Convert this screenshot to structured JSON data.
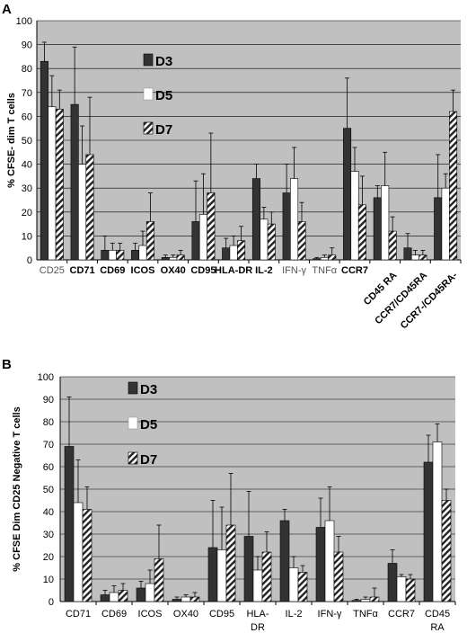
{
  "colors": {
    "plot_bg": "#c0c0c0",
    "d3": "#333333",
    "d5": "#ffffff",
    "d7_stripe": "#222222",
    "gridline": "#808080"
  },
  "chart_data": [
    {
      "panel": "A",
      "type": "bar",
      "ylabel": "% CFSE- dim T cells",
      "ylim": [
        0,
        100
      ],
      "yticks": [
        0,
        10,
        20,
        30,
        40,
        50,
        60,
        70,
        80,
        90,
        100
      ],
      "grid": true,
      "legend_placement": "upper-middle",
      "categories": [
        "CD25",
        "CD71",
        "CD69",
        "ICOS",
        "OX40",
        "CD95",
        "HLA-DR",
        "IL-2",
        "IFN-γ",
        "TNFα",
        "CCR7",
        "CD45 RA",
        "CCR7/CD45RA",
        "CCR7-/CD45RA-"
      ],
      "light_categories": [
        "CD25",
        "IFN-γ",
        "TNFα"
      ],
      "series": [
        {
          "name": "D3",
          "values": [
            83,
            65,
            4,
            4,
            1,
            16,
            5,
            34,
            28,
            0.5,
            55,
            26,
            5,
            26
          ],
          "errors": [
            8,
            24,
            6,
            3,
            1,
            17,
            4,
            6,
            12,
            0.5,
            21,
            5,
            6,
            18
          ]
        },
        {
          "name": "D5",
          "values": [
            64,
            40,
            4,
            6,
            1,
            19,
            6,
            17,
            34,
            1,
            37,
            31,
            2,
            30
          ],
          "errors": [
            13,
            16,
            3,
            6,
            1,
            17,
            4,
            5,
            13,
            1,
            10,
            14,
            2,
            6
          ]
        },
        {
          "name": "D7",
          "values": [
            63,
            44,
            4,
            16,
            2,
            28,
            8,
            15,
            16,
            2,
            23,
            12,
            2,
            62
          ],
          "errors": [
            8,
            24,
            3,
            12,
            2,
            25,
            6,
            5,
            8,
            3,
            12,
            6,
            2,
            9
          ]
        }
      ]
    },
    {
      "panel": "B",
      "type": "bar",
      "ylabel": "% CFSE Dim CD25 Negative T cells",
      "ylim": [
        0,
        100
      ],
      "yticks": [
        0,
        10,
        20,
        30,
        40,
        50,
        60,
        70,
        80,
        90,
        100
      ],
      "grid": true,
      "legend_placement": "upper-left",
      "categories": [
        "CD71",
        "CD69",
        "ICOS",
        "OX40",
        "CD95",
        "HLA-DR",
        "IL-2",
        "IFN-γ",
        "TNFα",
        "CCR7",
        "CD45 RA"
      ],
      "series": [
        {
          "name": "D3",
          "values": [
            69,
            3,
            6,
            1,
            24,
            29,
            36,
            33,
            0.5,
            17,
            62
          ],
          "errors": [
            22,
            2,
            3,
            1,
            21,
            20,
            5,
            13,
            0.5,
            6,
            12
          ]
        },
        {
          "name": "D5",
          "values": [
            44,
            4,
            8,
            2,
            23,
            14,
            15,
            36,
            1,
            11,
            71
          ],
          "errors": [
            19,
            3,
            6,
            1,
            19,
            6,
            5,
            15,
            1,
            1,
            8
          ]
        },
        {
          "name": "D7",
          "values": [
            41,
            5,
            19,
            2,
            34,
            22,
            13,
            22,
            2,
            10,
            45
          ],
          "errors": [
            10,
            3,
            15,
            2,
            23,
            9,
            3,
            7,
            4,
            2,
            5
          ]
        }
      ]
    }
  ]
}
